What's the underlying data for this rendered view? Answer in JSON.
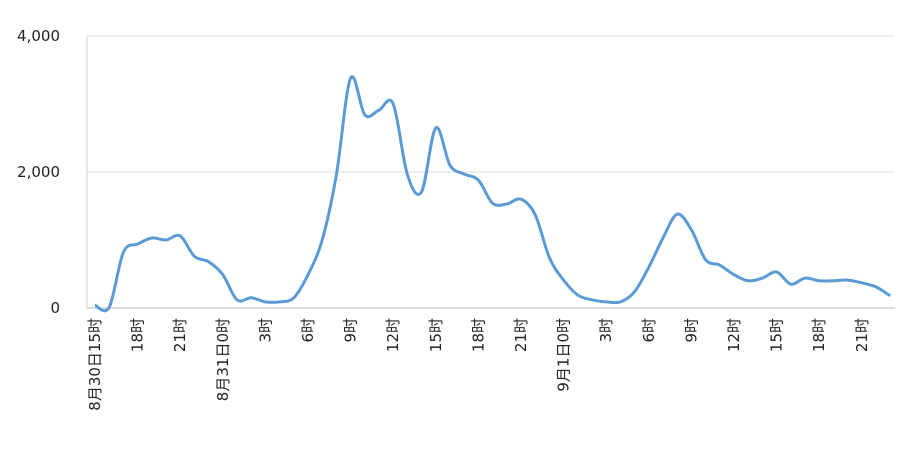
{
  "chart_data": {
    "type": "line",
    "categories": [
      "8月30日15时",
      null,
      null,
      "18时",
      null,
      null,
      "21时",
      null,
      null,
      "8月31日0时",
      null,
      null,
      "3时",
      null,
      null,
      "6时",
      null,
      null,
      "9时",
      null,
      null,
      "12时",
      null,
      null,
      "15时",
      null,
      null,
      "18时",
      null,
      null,
      "21时",
      null,
      null,
      "9月1日0时",
      null,
      null,
      "3时",
      null,
      null,
      "6时",
      null,
      null,
      "9时",
      null,
      null,
      "12时",
      null,
      null,
      "15时",
      null,
      null,
      "18时",
      null,
      null,
      "21时",
      null,
      null
    ],
    "series": [
      {
        "color": "#5b9bd5",
        "values": [
          40,
          10,
          820,
          940,
          1030,
          1000,
          1060,
          760,
          680,
          490,
          120,
          150,
          90,
          90,
          150,
          490,
          1000,
          1960,
          3380,
          2840,
          2910,
          3000,
          1960,
          1710,
          2650,
          2100,
          1970,
          1880,
          1540,
          1530,
          1600,
          1370,
          740,
          410,
          190,
          120,
          90,
          90,
          240,
          600,
          1030,
          1380,
          1150,
          710,
          630,
          490,
          400,
          440,
          530,
          350,
          440,
          400,
          400,
          410,
          370,
          310,
          180
        ]
      }
    ],
    "ylim": [
      0,
      4000
    ],
    "yticks": [
      0,
      {
        "value": 2000,
        "label": "2,000"
      },
      {
        "value": 4000,
        "label": "4,000"
      }
    ],
    "grid": true
  }
}
